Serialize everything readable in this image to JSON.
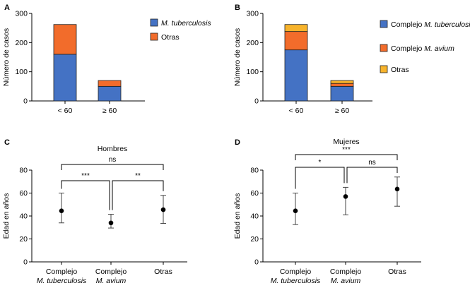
{
  "panels": {
    "A": {
      "label": "A"
    },
    "B": {
      "label": "B"
    },
    "C": {
      "label": "C"
    },
    "D": {
      "label": "D"
    }
  },
  "chart_data": [
    {
      "id": "A",
      "type": "bar",
      "stacked": true,
      "categories": [
        "< 60",
        "≥ 60"
      ],
      "series": [
        {
          "name_parts": [
            {
              "text": "M. tuberculosis",
              "italic": true
            }
          ],
          "color": "#4472c4",
          "values": [
            160,
            50
          ]
        },
        {
          "name_parts": [
            {
              "text": "Otras",
              "italic": false
            }
          ],
          "color": "#f26c2b",
          "values": [
            102,
            20
          ]
        }
      ],
      "ylabel": "Número de casos",
      "ylim": [
        0,
        300
      ],
      "yticks": [
        0,
        100,
        200,
        300
      ],
      "legend": "right"
    },
    {
      "id": "B",
      "type": "bar",
      "stacked": true,
      "categories": [
        "< 60",
        "≥ 60"
      ],
      "series": [
        {
          "name_parts": [
            {
              "text": "Complejo ",
              "italic": false
            },
            {
              "text": "M. tuberculosis",
              "italic": true
            }
          ],
          "color": "#4472c4",
          "values": [
            175,
            50
          ]
        },
        {
          "name_parts": [
            {
              "text": "Complejo ",
              "italic": false
            },
            {
              "text": "M. avium",
              "italic": true
            }
          ],
          "color": "#f26c2b",
          "values": [
            63,
            10
          ]
        },
        {
          "name_parts": [
            {
              "text": "Otras",
              "italic": false
            }
          ],
          "color": "#f7b32b",
          "values": [
            24,
            10
          ]
        }
      ],
      "ylabel": "Número de casos",
      "ylim": [
        0,
        300
      ],
      "yticks": [
        0,
        100,
        200,
        300
      ],
      "legend": "right"
    },
    {
      "id": "C",
      "type": "scatter",
      "title": "Hombres",
      "ylabel": "Edad en años",
      "ylim": [
        0,
        80
      ],
      "yticks": [
        0,
        20,
        40,
        60,
        80
      ],
      "categories": [
        {
          "line1": "Complejo",
          "line2": "M. tuberculosis"
        },
        {
          "line1": "Complejo",
          "line2": "M. avium"
        },
        {
          "line1": "Otras",
          "line2": ""
        }
      ],
      "points": [
        {
          "mean": 44.5,
          "low": 34,
          "high": 60
        },
        {
          "mean": 34,
          "low": 29.5,
          "high": 41.5
        },
        {
          "mean": 45.5,
          "low": 33.5,
          "high": 58
        }
      ],
      "significance": [
        {
          "from": 0,
          "to": 2,
          "label": "ns",
          "level": 2
        },
        {
          "from": 0,
          "to": 1,
          "label": "***",
          "level": 1
        },
        {
          "from": 1,
          "to": 2,
          "label": "**",
          "level": 1
        }
      ]
    },
    {
      "id": "D",
      "type": "scatter",
      "title": "Mujeres",
      "ylabel": "Edad en años",
      "ylim": [
        0,
        80
      ],
      "yticks": [
        0,
        20,
        40,
        60,
        80
      ],
      "categories": [
        {
          "line1": "Complejo",
          "line2": "M. tuberculosis"
        },
        {
          "line1": "Complejo",
          "line2": "M. avium"
        },
        {
          "line1": "Otras",
          "line2": ""
        }
      ],
      "points": [
        {
          "mean": 44.5,
          "low": 32.5,
          "high": 60
        },
        {
          "mean": 57,
          "low": 41,
          "high": 65
        },
        {
          "mean": 63.5,
          "low": 48.5,
          "high": 74
        }
      ],
      "significance": [
        {
          "from": 0,
          "to": 2,
          "label": "***",
          "level": 2
        },
        {
          "from": 0,
          "to": 1,
          "label": "*",
          "level": 1
        },
        {
          "from": 1,
          "to": 2,
          "label": "ns",
          "level": 1
        }
      ]
    }
  ]
}
